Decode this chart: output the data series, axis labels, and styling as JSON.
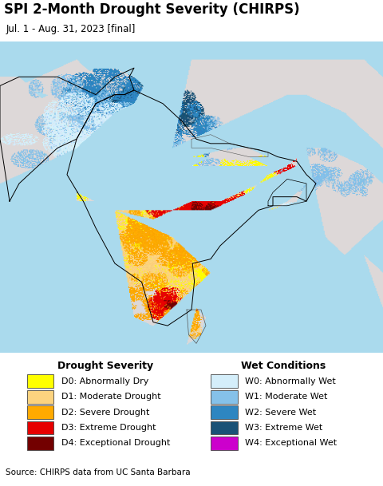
{
  "title": "SPI 2-Month Drought Severity (CHIRPS)",
  "subtitle": "Jul. 1 - Aug. 31, 2023 [final]",
  "source": "Source: CHIRPS data from UC Santa Barbara",
  "figsize": [
    4.8,
    6.09
  ],
  "dpi": 100,
  "ocean_color": "#aadaed",
  "land_bg_color": "#ddd8d8",
  "background_color": "#ffffff",
  "legend_drought_title": "Drought Severity",
  "legend_wet_title": "Wet Conditions",
  "legend_drought": [
    {
      "label": "D0: Abnormally Dry",
      "color": "#ffff00"
    },
    {
      "label": "D1: Moderate Drought",
      "color": "#fcd37f"
    },
    {
      "label": "D2: Severe Drought",
      "color": "#ffaa00"
    },
    {
      "label": "D3: Extreme Drought",
      "color": "#e60000"
    },
    {
      "label": "D4: Exceptional Drought",
      "color": "#730000"
    }
  ],
  "legend_wet": [
    {
      "label": "W0: Abnormally Wet",
      "color": "#d4eefa"
    },
    {
      "label": "W1: Moderate Wet",
      "color": "#85c1e9"
    },
    {
      "label": "W2: Severe Wet",
      "color": "#2e86c1"
    },
    {
      "label": "W3: Extreme Wet",
      "color": "#1a5276"
    },
    {
      "label": "W4: Exceptional Wet",
      "color": "#cc00cc"
    }
  ],
  "title_fontsize": 12,
  "subtitle_fontsize": 8.5,
  "source_fontsize": 7.5,
  "legend_title_fontsize": 9,
  "legend_fontsize": 8,
  "border_color": "#000000",
  "inner_border_color": "#888888",
  "source_bg": "#e0e0e0",
  "map_lon_min": 60,
  "map_lon_max": 100,
  "map_lat_min": 5,
  "map_lat_max": 40
}
